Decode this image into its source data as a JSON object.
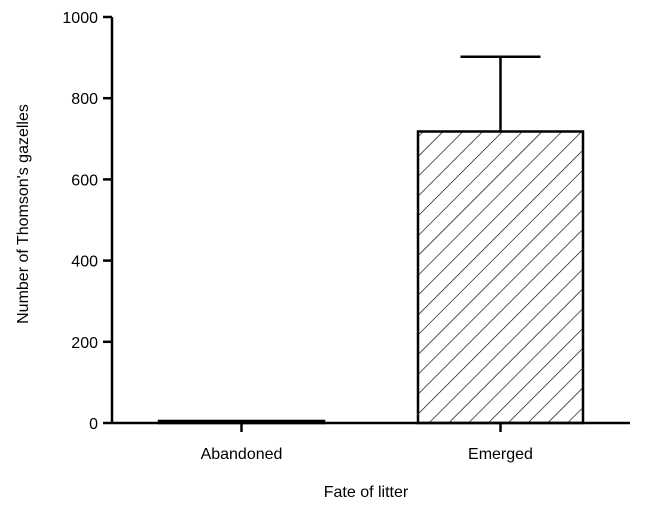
{
  "chart_data": {
    "type": "bar",
    "xlabel": "Fate of litter",
    "ylabel": "Number of Thomson's gazelles",
    "ylim": [
      0,
      1000
    ],
    "yticks": [
      0,
      200,
      400,
      600,
      800,
      1000
    ],
    "yticks_labels": [
      "0",
      "200",
      "400",
      "600",
      "800",
      "1000"
    ],
    "categories": [
      "Abandoned",
      "Emerged"
    ],
    "values": [
      5,
      718
    ],
    "error_upper": [
      0,
      902
    ],
    "bar_fill": [
      "#000000",
      "hatched"
    ],
    "grid": false,
    "legend": "none"
  }
}
